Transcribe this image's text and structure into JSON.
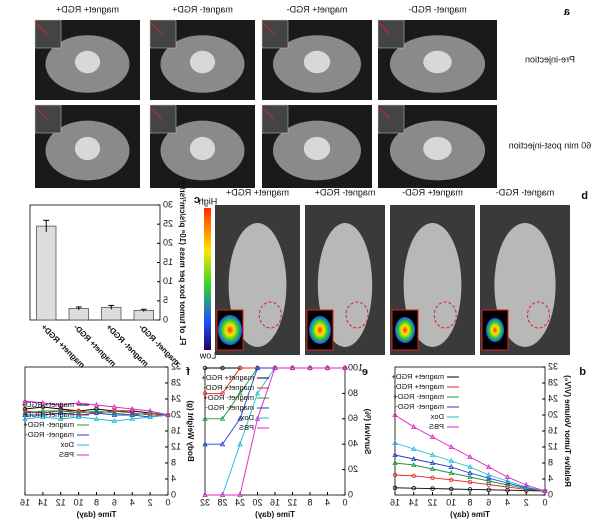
{
  "panels": {
    "a": {
      "label": "a",
      "columns": [
        "magnet- RGD-",
        "magnet+ RGD-",
        "magnet- RGD+",
        "magnet+ RGD+"
      ],
      "rows": [
        "Pre-injection",
        "60 min post-injection"
      ]
    },
    "b": {
      "label": "b",
      "columns": [
        "magnet- RGD-",
        "magnet+ RGD-",
        "magnet- RGD+",
        "magnet+ RGD+"
      ],
      "scale_high": "High",
      "scale_low": "Low"
    }
  },
  "chart_data": [
    {
      "type": "bar",
      "panel_label": "c",
      "ylabel": "FL of tumor box per mass (10⁸ p/s/cm²/sr/g)",
      "categories": [
        "magnet- RGD-",
        "magnet- RGD+",
        "magnet+ RGD-",
        "magnet+ RGD+"
      ],
      "values": [
        2.5,
        3.3,
        3.0,
        24.5
      ],
      "errors": [
        0.3,
        0.5,
        0.4,
        1.5
      ],
      "color": "#555555",
      "ylim": [
        0,
        30
      ],
      "yticks": [
        0,
        5,
        10,
        15,
        20,
        25,
        30
      ]
    },
    {
      "type": "line",
      "panel_label": "d",
      "xlabel": "Time (day)",
      "ylabel": "Relative Tumor Volume (V/V₀)",
      "x": [
        0,
        2,
        4,
        6,
        8,
        10,
        12,
        14,
        16
      ],
      "xlim": [
        0,
        16
      ],
      "xticks": [
        0,
        2,
        4,
        6,
        8,
        10,
        12,
        14,
        16
      ],
      "ylim": [
        0,
        32
      ],
      "yticks": [
        0,
        4,
        8,
        12,
        16,
        20,
        24,
        28,
        32
      ],
      "legend": "upper right",
      "series": [
        {
          "name": "magnet+ RGD+",
          "color": "#000000",
          "values": [
            1,
            1.1,
            1.2,
            1.3,
            1.4,
            1.5,
            1.6,
            1.7,
            1.8
          ]
        },
        {
          "name": "magnet+ RGD-",
          "color": "#e02020",
          "values": [
            1,
            1.4,
            2,
            2.6,
            3.2,
            3.8,
            4.3,
            4.8,
            5
          ]
        },
        {
          "name": "magnet- RGD+",
          "color": "#1a9a3a",
          "values": [
            1,
            1.6,
            2.5,
            3.5,
            4.5,
            5.5,
            6.5,
            7.5,
            8
          ]
        },
        {
          "name": "magnet- RGD-",
          "color": "#1f3fd0",
          "values": [
            1,
            1.8,
            3,
            4.2,
            5.5,
            7,
            8,
            9,
            10
          ]
        },
        {
          "name": "Dox",
          "color": "#20b8d8",
          "values": [
            1,
            2,
            3.5,
            5,
            7,
            8.5,
            10,
            11.5,
            13
          ]
        },
        {
          "name": "PBS",
          "color": "#e020c0",
          "values": [
            1,
            2.5,
            4.5,
            7,
            9.5,
            12,
            14.5,
            17,
            20
          ]
        }
      ]
    },
    {
      "type": "line",
      "panel_label": "e",
      "xlabel": "Time (day)",
      "ylabel": "Survival (%)",
      "x": [
        0,
        4,
        8,
        12,
        16,
        20,
        24,
        28,
        32
      ],
      "xlim": [
        0,
        32
      ],
      "xticks": [
        0,
        4,
        8,
        12,
        16,
        20,
        24,
        28,
        32
      ],
      "ylim": [
        0,
        100
      ],
      "yticks": [
        0,
        20,
        40,
        60,
        80,
        100
      ],
      "legend": "upper right",
      "series": [
        {
          "name": "magnet+ RGD+",
          "color": "#000000",
          "values": [
            100,
            100,
            100,
            100,
            100,
            100,
            100,
            100,
            100
          ]
        },
        {
          "name": "magnet+ RGD-",
          "color": "#e02020",
          "values": [
            100,
            100,
            100,
            100,
            100,
            100,
            100,
            80,
            80
          ]
        },
        {
          "name": "magnet- RGD+",
          "color": "#1a9a3a",
          "values": [
            100,
            100,
            100,
            100,
            100,
            100,
            80,
            60,
            60
          ]
        },
        {
          "name": "magnet- RGD-",
          "color": "#1f3fd0",
          "values": [
            100,
            100,
            100,
            100,
            100,
            100,
            60,
            40,
            40
          ]
        },
        {
          "name": "Dox",
          "color": "#20b8d8",
          "values": [
            100,
            100,
            100,
            100,
            100,
            80,
            40,
            0,
            0
          ]
        },
        {
          "name": "PBS",
          "color": "#e020c0",
          "values": [
            100,
            100,
            100,
            100,
            100,
            60,
            0,
            0,
            0
          ]
        }
      ]
    },
    {
      "type": "line",
      "panel_label": "f",
      "xlabel": "Time (day)",
      "ylabel": "Body Weight (g)",
      "x": [
        0,
        2,
        4,
        6,
        8,
        10,
        12,
        14,
        16
      ],
      "xlim": [
        0,
        16
      ],
      "xticks": [
        0,
        2,
        4,
        6,
        8,
        10,
        12,
        14,
        16
      ],
      "ylim": [
        0,
        32
      ],
      "yticks": [
        0,
        4,
        8,
        12,
        16,
        20,
        24,
        28,
        32
      ],
      "legend": "center right",
      "series": [
        {
          "name": "magnet+ RGD+",
          "color": "#000000",
          "values": [
            20,
            20.5,
            21,
            21,
            21.5,
            21,
            21.5,
            22,
            21.5
          ]
        },
        {
          "name": "magnet+ RGD-",
          "color": "#e02020",
          "values": [
            20,
            20,
            20.5,
            21,
            20.5,
            21,
            21,
            20.5,
            21
          ]
        },
        {
          "name": "magnet- RGD+",
          "color": "#1a9a3a",
          "values": [
            20,
            20.5,
            20,
            20.5,
            21,
            20.5,
            21,
            21,
            20.5
          ]
        },
        {
          "name": "magnet- RGD-",
          "color": "#1f3fd0",
          "values": [
            20,
            19.5,
            20,
            20,
            20.5,
            20,
            20.5,
            20,
            20
          ]
        },
        {
          "name": "Dox",
          "color": "#20b8d8",
          "values": [
            20,
            19.5,
            19,
            18.5,
            19,
            19.5,
            19,
            19.5,
            19
          ]
        },
        {
          "name": "PBS",
          "color": "#e020c0",
          "values": [
            20,
            21,
            21.5,
            22,
            22.5,
            23,
            22.5,
            23,
            23.5
          ]
        }
      ]
    }
  ]
}
